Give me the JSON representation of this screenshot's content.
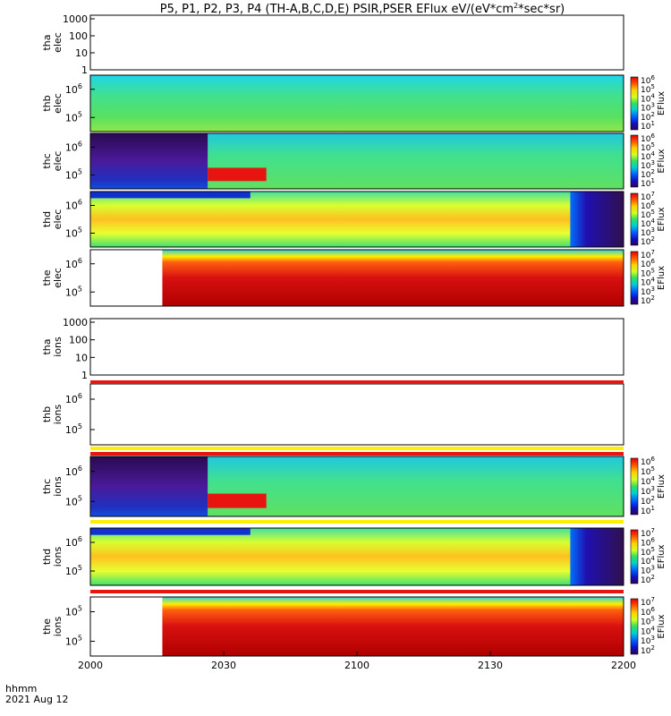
{
  "chart_data": {
    "type": "heatmap",
    "title": "P5, P1, P2, P3, P4 (TH-A,B,C,D,E) PSIR,PSER EFlux eV/(eV*cm",
    "title_sup": "2",
    "title_tail": "*sec*sr)",
    "x_axis": {
      "tick_labels": [
        "2000",
        "2030",
        "2100",
        "2130",
        "2200"
      ],
      "label_line1": "hhmm",
      "label_line2": "2021 Aug 12"
    },
    "colorbar_label": "EFlux",
    "panels": [
      {
        "id": "tha-elec",
        "label_line1": "tha",
        "label_line2": "elec",
        "yticks": [
          "1000",
          "100",
          "10",
          "1"
        ],
        "colorbar": false,
        "spectrum": "empty"
      },
      {
        "id": "thb-elec",
        "label_line1": "thb",
        "label_line2": "elec",
        "yticks": [
          "10",
          "10"
        ],
        "ytick_exps": [
          "6",
          "5"
        ],
        "colorbar": true,
        "cb_exps": [
          "6",
          "5",
          "4",
          "3",
          "2",
          "1"
        ],
        "spectrum": "green"
      },
      {
        "id": "thc-elec",
        "label_line1": "thc",
        "label_line2": "elec",
        "yticks": [
          "10",
          "10"
        ],
        "ytick_exps": [
          "6",
          "5"
        ],
        "colorbar": true,
        "cb_exps": [
          "6",
          "5",
          "4",
          "3",
          "2",
          "1"
        ],
        "spectrum": "thc-elec"
      },
      {
        "id": "thd-elec",
        "label_line1": "thd",
        "label_line2": "elec",
        "yticks": [
          "10",
          "10"
        ],
        "ytick_exps": [
          "6",
          "5"
        ],
        "colorbar": true,
        "cb_exps": [
          "7",
          "6",
          "5",
          "4",
          "3",
          "2"
        ],
        "spectrum": "thd"
      },
      {
        "id": "the-elec",
        "label_line1": "the",
        "label_line2": "elec",
        "yticks": [
          "10",
          "10"
        ],
        "ytick_exps": [
          "6",
          "5"
        ],
        "colorbar": true,
        "cb_exps": [
          "7",
          "6",
          "5",
          "4",
          "3",
          "2"
        ],
        "spectrum": "the"
      },
      {
        "id": "tha-ions",
        "label_line1": "tha",
        "label_line2": "ions",
        "yticks": [
          "1000",
          "100",
          "10",
          "1"
        ],
        "colorbar": false,
        "spectrum": "empty"
      },
      {
        "id": "thb-ions",
        "label_line1": "thb",
        "label_line2": "ions",
        "yticks": [
          "10",
          "10"
        ],
        "ytick_exps": [
          "6",
          "5"
        ],
        "colorbar": false,
        "spectrum": "empty"
      },
      {
        "id": "thc-ions",
        "label_line1": "thc",
        "label_line2": "ions",
        "yticks": [
          "10",
          "10"
        ],
        "ytick_exps": [
          "6",
          "5"
        ],
        "colorbar": true,
        "cb_exps": [
          "6",
          "5",
          "4",
          "3",
          "2",
          "1"
        ],
        "spectrum": "thc-ions"
      },
      {
        "id": "thd-ions",
        "label_line1": "thd",
        "label_line2": "ions",
        "yticks": [
          "10",
          "10"
        ],
        "ytick_exps": [
          "6",
          "5"
        ],
        "colorbar": true,
        "cb_exps": [
          "7",
          "6",
          "5",
          "4",
          "3",
          "2"
        ],
        "spectrum": "thd"
      },
      {
        "id": "the-ions",
        "label_line1": "the",
        "label_line2": "ions",
        "yticks": [
          "10",
          "10"
        ],
        "ytick_exps": [
          "5",
          "5"
        ],
        "colorbar": true,
        "cb_exps": [
          "7",
          "6",
          "5",
          "4",
          "3",
          "2"
        ],
        "spectrum": "the"
      }
    ],
    "colors": {
      "red": "#e8140f",
      "yellow": "#ffee00",
      "green": "#33dd77",
      "purple": "#4a1a9a",
      "blue": "#1030d0",
      "white": "#ffffff"
    }
  }
}
